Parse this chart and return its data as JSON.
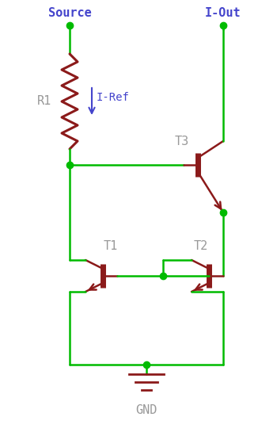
{
  "wire_color": "#00bb00",
  "component_color": "#8B1A1A",
  "label_color": "#4444cc",
  "node_color": "#00bb00",
  "gnd_color": "#999999",
  "background": "#ffffff",
  "source_label": "Source",
  "iout_label": "I-Out",
  "iref_label": "I-Ref",
  "r1_label": "R1",
  "t1_label": "T1",
  "t2_label": "T2",
  "t3_label": "T3",
  "gnd_label": "GND",
  "figw": 3.5,
  "figh": 5.45,
  "dpi": 100
}
